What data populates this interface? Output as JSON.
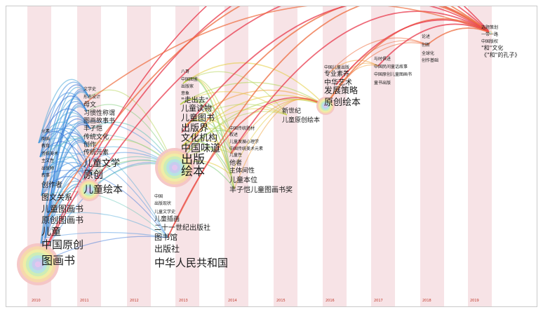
{
  "years": [
    "2010",
    "2011",
    "2012",
    "2013",
    "2014",
    "2015",
    "2016",
    "2017",
    "2018",
    "2019"
  ],
  "colors": {
    "stripe": "#f7e3e6",
    "recent": "#e8394c",
    "older": "#2e6fd6"
  },
  "columns": [
    {
      "year": "2010",
      "keywords": [
        "元素",
        "图画",
        "教育",
        "传统美术",
        "主文性",
        "出版物",
        "叙事",
        "创作者",
        "图文关系",
        "儿童图画书",
        "原创图画书",
        "儿童",
        "中国原创",
        "图画书"
      ]
    },
    {
      "year": "2011",
      "keywords": [
        "文学史",
        "形态设计",
        "母文",
        "习惯性称谓",
        "图画故事书",
        "丰子恺",
        "传统文化",
        "创作",
        "传统元素",
        "儿童文学",
        "原创",
        "儿童绘本"
      ]
    },
    {
      "year": "2013a",
      "keywords": [
        "八哥",
        "中国图鉴",
        "出版家",
        "意象",
        "\"走出去\"",
        "儿童读物",
        "儿童图书",
        "出版界",
        "文化机构",
        "中国味道",
        "出版",
        "绘本"
      ]
    },
    {
      "year": "2013b",
      "keywords": [
        "中国",
        "出版现状",
        "儿童文学史",
        "儿童插画",
        "二十一世纪出版社",
        "图书馆",
        "出版社",
        "中华人民共和国"
      ]
    },
    {
      "year": "2014",
      "keywords": [
        "中国传统题材",
        "叙述",
        "儿童发展心理学",
        "中国传统美术元素",
        "儿童性",
        "他者",
        "主体间性",
        "儿童本位",
        "丰子恺儿童图画书奖"
      ]
    },
    {
      "year": "2015",
      "keywords": [
        "新世纪",
        "儿童原创绘本"
      ]
    },
    {
      "year": "2016",
      "keywords": [
        "中国儿童出版",
        "专业素养",
        "中华艺术",
        "发展策略",
        "原创绘本"
      ]
    },
    {
      "year": "2017",
      "keywords": [
        "与时俱进",
        "中国民间童话故事",
        "中国原创儿童图画书",
        "童书出版"
      ]
    },
    {
      "year": "2018",
      "keywords": [
        "论述",
        "创新",
        "全球化",
        "创作基础"
      ]
    },
    {
      "year": "2019",
      "keywords": [
        "选题策划",
        "一带一路",
        "中国版权",
        "\"和\"文化",
        "《\"和\"的孔子》"
      ]
    }
  ]
}
